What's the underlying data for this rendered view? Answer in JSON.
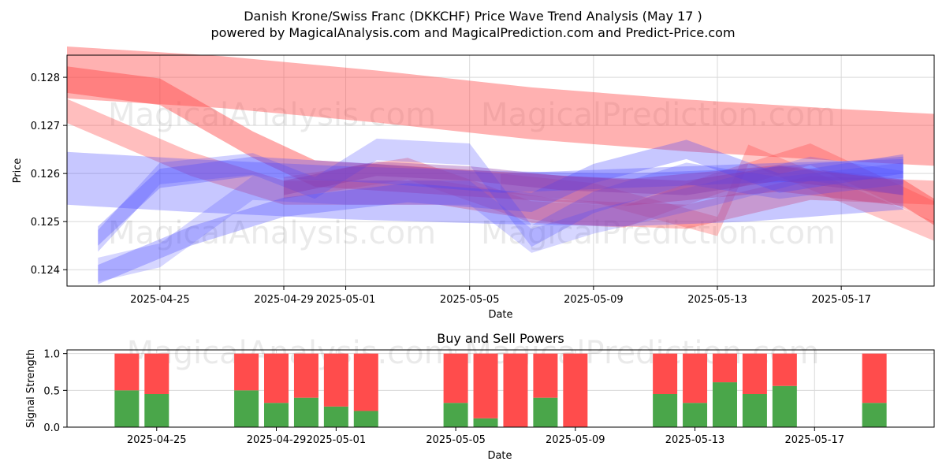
{
  "title": "Danish Krone/Swiss Franc (DKKCHF) Price Wave Trend Analysis (May 17 )",
  "subtitle": "powered by MagicalAnalysis.com and MagicalPrediction.com and Predict-Price.com",
  "watermarks": [
    "MagicalAnalysis.com",
    "MagicalPrediction.com"
  ],
  "chart_data": [
    {
      "type": "area",
      "xlabel": "Date",
      "ylabel": "Price",
      "ylim": [
        0.12366,
        0.12846
      ],
      "xlim": [
        "2025-04-22",
        "2025-05-20"
      ],
      "x_ticks": [
        "2025-04-25",
        "2025-04-29",
        "2025-05-01",
        "2025-05-05",
        "2025-05-09",
        "2025-05-13",
        "2025-05-17"
      ],
      "y_ticks": [
        0.124,
        0.125,
        0.126,
        0.127,
        0.128
      ],
      "grid": true,
      "colors": {
        "bearish": "#ff4444",
        "bullish": "#4444ff",
        "mixed": "#8833aa"
      },
      "series": [
        {
          "color": "red",
          "opacity": 0.42,
          "width": 0.00108,
          "points": [
            [
              "2025-04-22",
              0.1281
            ],
            [
              "2025-04-27",
              0.1279
            ],
            [
              "2025-05-02",
              0.1276
            ],
            [
              "2025-05-07",
              0.12725
            ],
            [
              "2025-05-12",
              0.127
            ],
            [
              "2025-05-17",
              0.1268
            ],
            [
              "2025-05-20",
              0.1267
            ]
          ]
        },
        {
          "color": "red",
          "opacity": 0.45,
          "width": 0.00055,
          "points": [
            [
              "2025-04-22",
              0.12795
            ],
            [
              "2025-04-25",
              0.1277
            ],
            [
              "2025-04-28",
              0.1266
            ],
            [
              "2025-04-30",
              0.126
            ],
            [
              "2025-05-05",
              0.1258
            ],
            [
              "2025-05-10",
              0.1256
            ],
            [
              "2025-05-15",
              0.1259
            ],
            [
              "2025-05-19",
              0.1256
            ],
            [
              "2025-05-20",
              0.1252
            ]
          ]
        },
        {
          "color": "red",
          "opacity": 0.35,
          "width": 0.0005,
          "points": [
            [
              "2025-04-22",
              0.1273
            ],
            [
              "2025-04-26",
              0.1262
            ],
            [
              "2025-04-29",
              0.1256
            ],
            [
              "2025-05-04",
              0.1256
            ],
            [
              "2025-05-08",
              0.1252
            ],
            [
              "2025-05-12",
              0.1251
            ],
            [
              "2025-05-16",
              0.1257
            ],
            [
              "2025-05-20",
              0.1256
            ]
          ]
        },
        {
          "color": "red",
          "opacity": 0.32,
          "width": 0.00045,
          "points": [
            [
              "2025-04-29",
              0.1257
            ],
            [
              "2025-05-03",
              0.1261
            ],
            [
              "2025-05-07",
              0.1252
            ],
            [
              "2025-05-10",
              0.1251
            ],
            [
              "2025-05-13",
              0.1258
            ],
            [
              "2025-05-16",
              0.1264
            ],
            [
              "2025-05-20",
              0.1252
            ]
          ]
        },
        {
          "color": "red",
          "opacity": 0.3,
          "width": 0.0004,
          "points": [
            [
              "2025-05-06",
              0.1258
            ],
            [
              "2025-05-09",
              0.1256
            ],
            [
              "2025-05-13",
              0.1249
            ],
            [
              "2025-05-14",
              0.1264
            ],
            [
              "2025-05-17",
              0.1256
            ],
            [
              "2025-05-20",
              0.1248
            ]
          ]
        },
        {
          "color": "blue",
          "opacity": 0.3,
          "width": 0.0011,
          "points": [
            [
              "2025-04-22",
              0.1259
            ],
            [
              "2025-04-26",
              0.12575
            ],
            [
              "2025-05-01",
              0.1256
            ],
            [
              "2025-05-06",
              0.1255
            ],
            [
              "2025-05-10",
              0.12545
            ],
            [
              "2025-05-14",
              0.12555
            ],
            [
              "2025-05-19",
              0.1258
            ]
          ]
        },
        {
          "color": "blue",
          "opacity": 0.3,
          "width": 0.0004,
          "points": [
            [
              "2025-04-23",
              0.1247
            ],
            [
              "2025-04-25",
              0.1259
            ],
            [
              "2025-04-28",
              0.12615
            ],
            [
              "2025-05-02",
              0.126
            ],
            [
              "2025-05-06",
              0.1258
            ],
            [
              "2025-05-10",
              0.1259
            ],
            [
              "2025-05-14",
              0.126
            ],
            [
              "2025-05-19",
              0.1261
            ]
          ]
        },
        {
          "color": "blue",
          "opacity": 0.3,
          "width": 0.0004,
          "points": [
            [
              "2025-04-23",
              0.1239
            ],
            [
              "2025-04-26",
              0.1247
            ],
            [
              "2025-04-29",
              0.1253
            ],
            [
              "2025-05-03",
              0.1256
            ],
            [
              "2025-05-07",
              0.1254
            ],
            [
              "2025-05-09",
              0.126
            ],
            [
              "2025-05-12",
              0.1265
            ],
            [
              "2025-05-15",
              0.1258
            ],
            [
              "2025-05-19",
              0.1262
            ]
          ]
        },
        {
          "color": "blue",
          "opacity": 0.25,
          "width": 0.00045,
          "points": [
            [
              "2025-04-23",
              0.1246
            ],
            [
              "2025-04-25",
              0.126
            ],
            [
              "2025-04-28",
              0.1262
            ],
            [
              "2025-04-30",
              0.1257
            ],
            [
              "2025-05-02",
              0.1265
            ],
            [
              "2025-05-05",
              0.1264
            ],
            [
              "2025-05-07",
              0.1247
            ],
            [
              "2025-05-09",
              0.1254
            ],
            [
              "2025-05-12",
              0.126
            ],
            [
              "2025-05-15",
              0.1257
            ],
            [
              "2025-05-19",
              0.126
            ]
          ]
        },
        {
          "color": "blue",
          "opacity": 0.22,
          "width": 0.0005,
          "points": [
            [
              "2025-04-23",
              0.124
            ],
            [
              "2025-04-25",
              0.1243
            ],
            [
              "2025-04-28",
              0.1257
            ],
            [
              "2025-05-01",
              0.1256
            ],
            [
              "2025-05-05",
              0.1256
            ],
            [
              "2025-05-07",
              0.1246
            ],
            [
              "2025-05-09",
              0.125
            ],
            [
              "2025-05-13",
              0.1256
            ],
            [
              "2025-05-16",
              0.1261
            ],
            [
              "2025-05-19",
              0.1258
            ]
          ]
        },
        {
          "color": "purple",
          "opacity": 0.35,
          "width": 0.0003,
          "points": [
            [
              "2025-04-29",
              0.1257
            ],
            [
              "2025-05-02",
              0.1261
            ],
            [
              "2025-05-05",
              0.126
            ],
            [
              "2025-05-08",
              0.1258
            ],
            [
              "2025-05-12",
              0.1257
            ],
            [
              "2025-05-15",
              0.126
            ],
            [
              "2025-05-19",
              0.1257
            ]
          ]
        }
      ]
    },
    {
      "type": "bar",
      "title": "Buy and Sell Powers",
      "xlabel": "Date",
      "ylabel": "Signal Strength",
      "ylim": [
        0,
        1.05
      ],
      "y_ticks": [
        "0.0",
        "0.5",
        "1.0"
      ],
      "x_ticks": [
        "2025-04-25",
        "2025-04-29",
        "2025-05-01",
        "2025-05-05",
        "2025-05-09",
        "2025-05-13",
        "2025-05-17"
      ],
      "grid": true,
      "colors": {
        "buy": "#4aa64a",
        "sell": "#ff4c4c"
      },
      "categories": [
        "2025-04-24",
        "2025-04-25",
        "2025-04-28",
        "2025-04-29",
        "2025-04-30",
        "2025-05-01",
        "2025-05-02",
        "2025-05-05",
        "2025-05-06",
        "2025-05-07",
        "2025-05-08",
        "2025-05-09",
        "2025-05-12",
        "2025-05-13",
        "2025-05-14",
        "2025-05-15",
        "2025-05-16",
        "2025-05-19"
      ],
      "buy": [
        0.5,
        0.45,
        0.5,
        0.33,
        0.4,
        0.28,
        0.22,
        0.33,
        0.12,
        0.0,
        0.4,
        0.0,
        0.45,
        0.33,
        0.61,
        0.45,
        0.56,
        0.33
      ],
      "sell": [
        0.5,
        0.55,
        0.5,
        0.67,
        0.6,
        0.72,
        0.78,
        0.67,
        0.88,
        1.0,
        0.6,
        1.0,
        0.55,
        0.67,
        0.39,
        0.55,
        0.44,
        0.67
      ]
    }
  ]
}
